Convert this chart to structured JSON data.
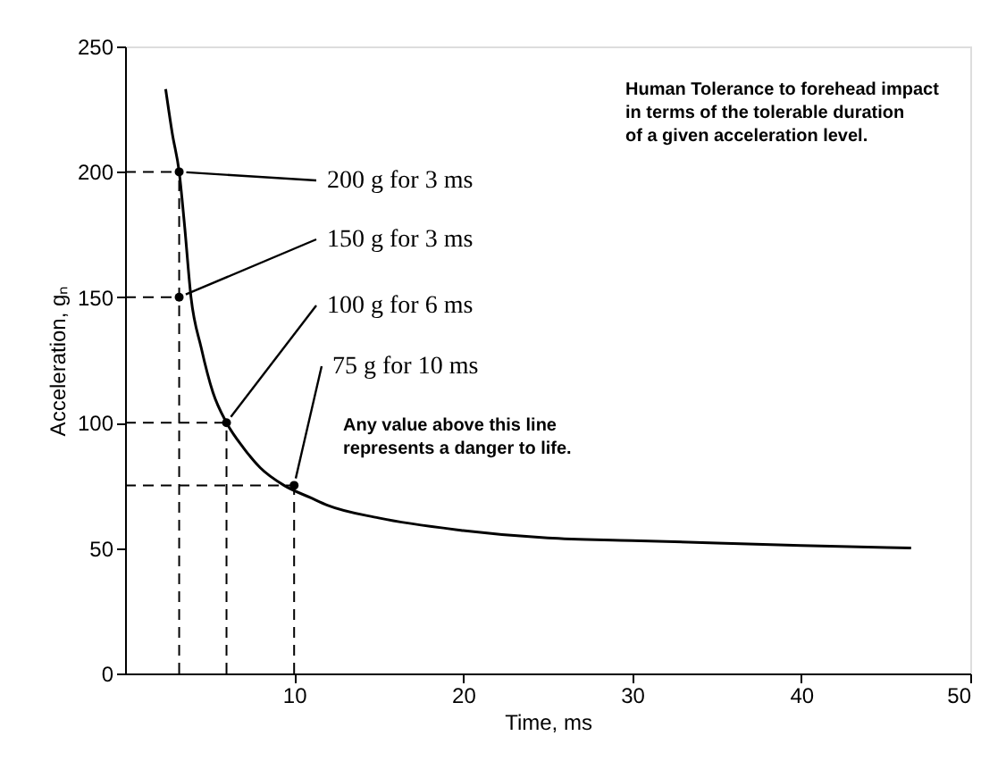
{
  "chart_data": {
    "type": "line",
    "xlabel": "Time, ms",
    "ylabel": "Acceleration, gₙ",
    "xlim": [
      0,
      50
    ],
    "xticks": [
      10,
      20,
      30,
      40,
      50
    ],
    "ylim": [
      0,
      250
    ],
    "yticks": [
      0,
      50,
      100,
      150,
      200,
      250
    ],
    "grid": false,
    "series": [
      {
        "color": "#000000",
        "line_style": "solid",
        "x": [
          2.4,
          2.8,
          3.2,
          3.5,
          3.9,
          4.5,
          5.2,
          6,
          7,
          8,
          9.4,
          11,
          12,
          15,
          20,
          25,
          30,
          35,
          40,
          46.5
        ],
        "values": [
          233,
          215,
          200,
          180,
          150,
          130,
          112,
          100,
          90,
          82,
          75,
          70,
          67,
          62,
          57,
          54,
          53,
          52,
          51,
          50
        ]
      },
      {
        "type": "scatter",
        "color": "#000000",
        "marker": "circle",
        "x": [
          3.2,
          3.2,
          6,
          10
        ],
        "values": [
          200,
          150,
          100,
          75
        ]
      },
      {
        "color": "#000000",
        "line_style": "dashed",
        "x": [
          0,
          3.2
        ],
        "values": [
          200,
          200
        ]
      },
      {
        "color": "#000000",
        "line_style": "dashed",
        "x": [
          0,
          3.2
        ],
        "values": [
          150,
          150
        ]
      },
      {
        "color": "#000000",
        "line_style": "dashed",
        "x": [
          0,
          6
        ],
        "values": [
          100,
          100
        ]
      },
      {
        "color": "#000000",
        "line_style": "dashed",
        "x": [
          0,
          10
        ],
        "values": [
          75,
          75
        ]
      },
      {
        "color": "#000000",
        "line_style": "dashed",
        "x": [
          3.2,
          3.2
        ],
        "values": [
          0,
          200
        ]
      },
      {
        "color": "#000000",
        "line_style": "dashed",
        "x": [
          6,
          6
        ],
        "values": [
          0,
          100
        ]
      },
      {
        "color": "#000000",
        "line_style": "dashed",
        "x": [
          10,
          10
        ],
        "values": [
          0,
          75
        ]
      }
    ],
    "annotations": [
      {
        "text": "200 g for 3 ms",
        "x": 3.2,
        "y": 200
      },
      {
        "text": "150 g for 3 ms",
        "x": 3.2,
        "y": 150
      },
      {
        "text": "100 g for 6 ms",
        "x": 6,
        "y": 100
      },
      {
        "text": "75 g for 10 ms",
        "x": 10,
        "y": 75
      },
      "Human Tolerance to forehead impact in terms of the tolerable duration of a given acceleration level.",
      "Any value above this line represents a danger to life."
    ]
  }
}
